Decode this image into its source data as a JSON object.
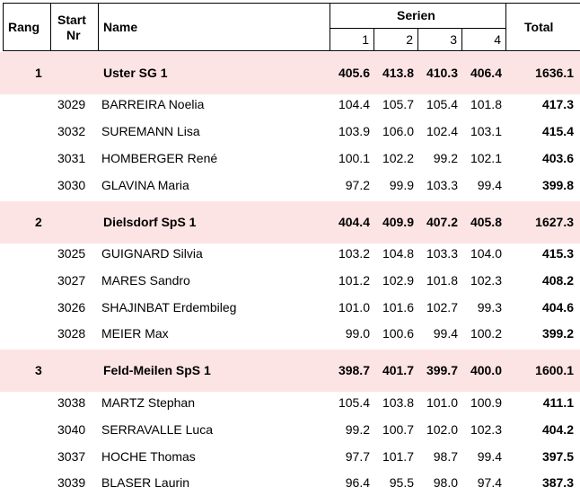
{
  "header": {
    "rang": "Rang",
    "start_1": "Start",
    "start_2": "Nr",
    "name": "Name",
    "serien": "Serien",
    "series": [
      "1",
      "2",
      "3",
      "4"
    ],
    "total": "Total"
  },
  "teams": [
    {
      "rank": "1",
      "name": "Uster SG 1",
      "series": [
        "405.6",
        "413.8",
        "410.3",
        "406.4"
      ],
      "total": "1636.1",
      "members": [
        {
          "nr": "3029",
          "name": "BARREIRA  Noelia",
          "series": [
            "104.4",
            "105.7",
            "105.4",
            "101.8"
          ],
          "total": "417.3"
        },
        {
          "nr": "3032",
          "name": "SUREMANN Lisa",
          "series": [
            "103.9",
            "106.0",
            "102.4",
            "103.1"
          ],
          "total": "415.4"
        },
        {
          "nr": "3031",
          "name": "HOMBERGER René",
          "series": [
            "100.1",
            "102.2",
            "99.2",
            "102.1"
          ],
          "total": "403.6"
        },
        {
          "nr": "3030",
          "name": "GLAVINA  Maria",
          "series": [
            "97.2",
            "99.9",
            "103.3",
            "99.4"
          ],
          "total": "399.8"
        }
      ]
    },
    {
      "rank": "2",
      "name": "Dielsdorf SpS 1",
      "series": [
        "404.4",
        "409.9",
        "407.2",
        "405.8"
      ],
      "total": "1627.3",
      "members": [
        {
          "nr": "3025",
          "name": "GUIGNARD Silvia",
          "series": [
            "103.2",
            "104.8",
            "103.3",
            "104.0"
          ],
          "total": "415.3"
        },
        {
          "nr": "3027",
          "name": "MARES Sandro",
          "series": [
            "101.2",
            "102.9",
            "101.8",
            "102.3"
          ],
          "total": "408.2"
        },
        {
          "nr": "3026",
          "name": "SHAJINBAT Erdembileg",
          "series": [
            "101.0",
            "101.6",
            "102.7",
            "99.3"
          ],
          "total": "404.6"
        },
        {
          "nr": "3028",
          "name": "MEIER Max",
          "series": [
            "99.0",
            "100.6",
            "99.4",
            "100.2"
          ],
          "total": "399.2"
        }
      ]
    },
    {
      "rank": "3",
      "name": "Feld-Meilen SpS 1",
      "series": [
        "398.7",
        "401.7",
        "399.7",
        "400.0"
      ],
      "total": "1600.1",
      "members": [
        {
          "nr": "3038",
          "name": "MARTZ Stephan",
          "series": [
            "105.4",
            "103.8",
            "101.0",
            "100.9"
          ],
          "total": "411.1"
        },
        {
          "nr": "3040",
          "name": "SERRAVALLE Luca",
          "series": [
            "99.2",
            "100.7",
            "102.0",
            "102.3"
          ],
          "total": "404.2"
        },
        {
          "nr": "3037",
          "name": "HOCHE Thomas",
          "series": [
            "97.7",
            "101.7",
            "98.7",
            "99.4"
          ],
          "total": "397.5"
        },
        {
          "nr": "3039",
          "name": "BLASER Laurin",
          "series": [
            "96.4",
            "95.5",
            "98.0",
            "97.4"
          ],
          "total": "387.3"
        }
      ]
    }
  ]
}
